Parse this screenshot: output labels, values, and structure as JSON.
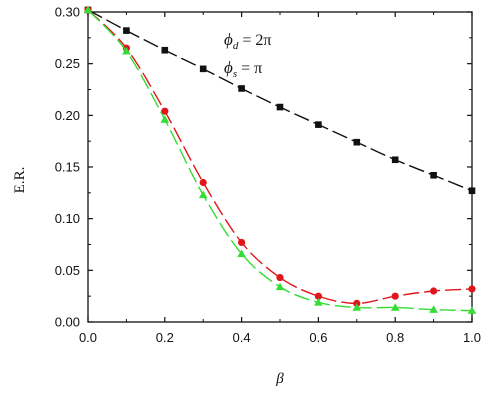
{
  "chart_data": {
    "type": "line",
    "xlabel": "β",
    "ylabel": "E.R.",
    "xlim": [
      0.0,
      1.0
    ],
    "ylim": [
      0.0,
      0.3
    ],
    "xticks": [
      "0.0",
      "0.2",
      "0.4",
      "0.6",
      "0.8",
      "1.0"
    ],
    "yticks": [
      "0.00",
      "0.05",
      "0.10",
      "0.15",
      "0.20",
      "0.25",
      "0.30"
    ],
    "grid": false,
    "legend": "none",
    "annotations": [
      {
        "symbol": "ϕ",
        "sub": "d",
        "rest": " = 2π"
      },
      {
        "symbol": "ϕ",
        "sub": "s",
        "rest": " = π"
      }
    ],
    "x": [
      0.0,
      0.1,
      0.2,
      0.3,
      0.4,
      0.5,
      0.6,
      0.7,
      0.8,
      0.9,
      1.0
    ],
    "series": [
      {
        "marker": "square",
        "color": "#111111",
        "dash": "dashed",
        "values": [
          0.302,
          0.282,
          0.263,
          0.245,
          0.226,
          0.208,
          0.191,
          0.174,
          0.157,
          0.142,
          0.127
        ]
      },
      {
        "marker": "circle",
        "color": "#e0161a",
        "dash": "dashed",
        "values": [
          0.302,
          0.265,
          0.204,
          0.135,
          0.077,
          0.043,
          0.025,
          0.018,
          0.025,
          0.03,
          0.032
        ]
      },
      {
        "marker": "triangle",
        "color": "#33dd33",
        "dash": "dashed",
        "values": [
          0.302,
          0.262,
          0.196,
          0.123,
          0.066,
          0.034,
          0.019,
          0.014,
          0.014,
          0.012,
          0.011
        ]
      }
    ]
  }
}
